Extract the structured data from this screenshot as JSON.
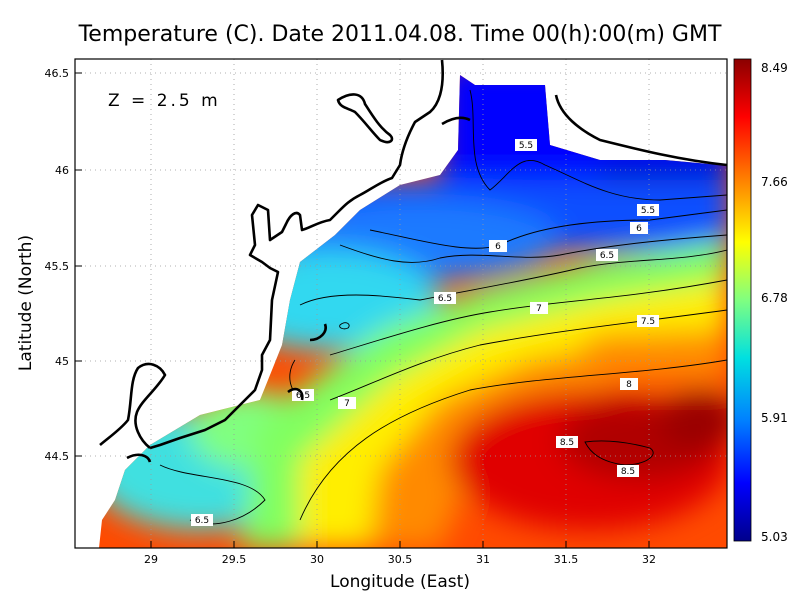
{
  "title": "Temperature (C). Date 2011.04.08. Time 00(h):00(m) GMT",
  "depth_label": "Z = 2.5 m",
  "xlabel": "Longitude (East)",
  "ylabel": "Latitude (North)",
  "x_ticks": [
    "29",
    "29.5",
    "30",
    "30.5",
    "31",
    "31.5",
    "32"
  ],
  "y_ticks": [
    "46.5",
    "46",
    "45.5",
    "45",
    "44.5"
  ],
  "colorbar": {
    "ticks": [
      "8.49",
      "7.66",
      "6.78",
      "5.91",
      "5.03"
    ],
    "min": 5.03,
    "max": 8.49,
    "colors": [
      "#00008b",
      "#0000ff",
      "#0080ff",
      "#00e0e0",
      "#80ff80",
      "#ffff00",
      "#ff8000",
      "#ff0000",
      "#8b0000"
    ]
  },
  "contour_labels": [
    "5.5",
    "5.5",
    "6",
    "6",
    "6.5",
    "6.5",
    "6.5",
    "6.5",
    "7",
    "7",
    "7.5",
    "8",
    "8.5",
    "8.5"
  ],
  "chart_data": {
    "type": "heatmap",
    "title": "Temperature (C). Date 2011.04.08. Time 00(h):00(m) GMT",
    "xlabel": "Longitude (East)",
    "ylabel": "Latitude (North)",
    "xlim": [
      28.5,
      32.5
    ],
    "ylim": [
      44.05,
      46.55
    ],
    "value_range": [
      5.03,
      8.49
    ],
    "grid": true
  }
}
